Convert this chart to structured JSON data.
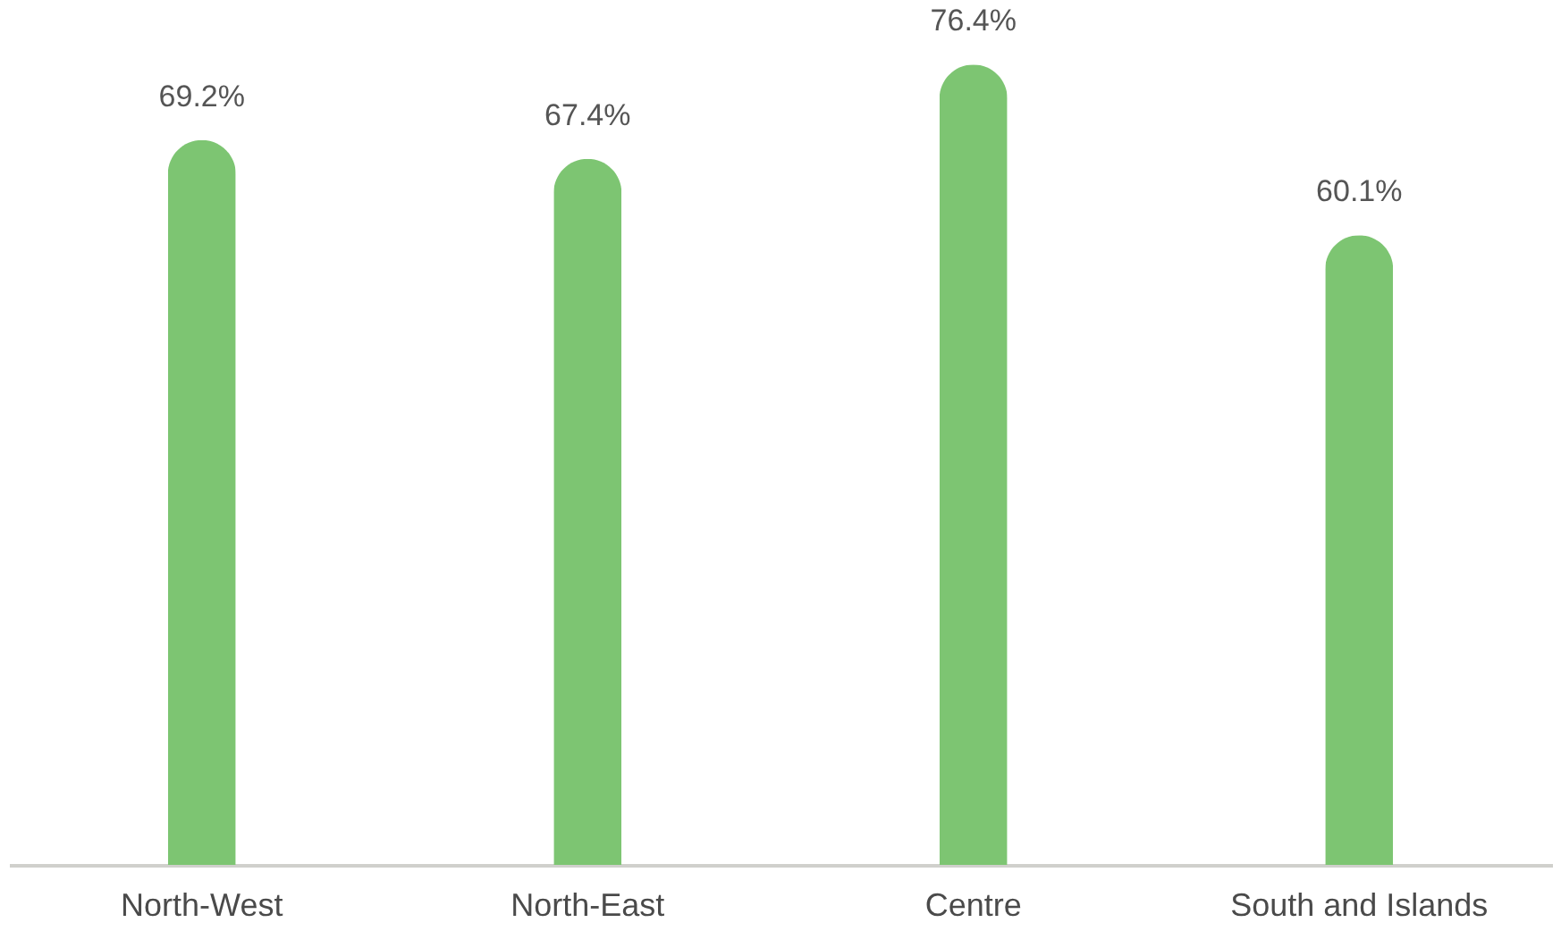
{
  "chart_data": {
    "type": "bar",
    "categories": [
      "North-West",
      "North-East",
      "Centre",
      "South and Islands"
    ],
    "values": [
      69.2,
      67.4,
      76.4,
      60.1
    ],
    "value_labels": [
      "69.2%",
      "67.4%",
      "76.4%",
      "60.1%"
    ],
    "color": "#7dc572"
  }
}
